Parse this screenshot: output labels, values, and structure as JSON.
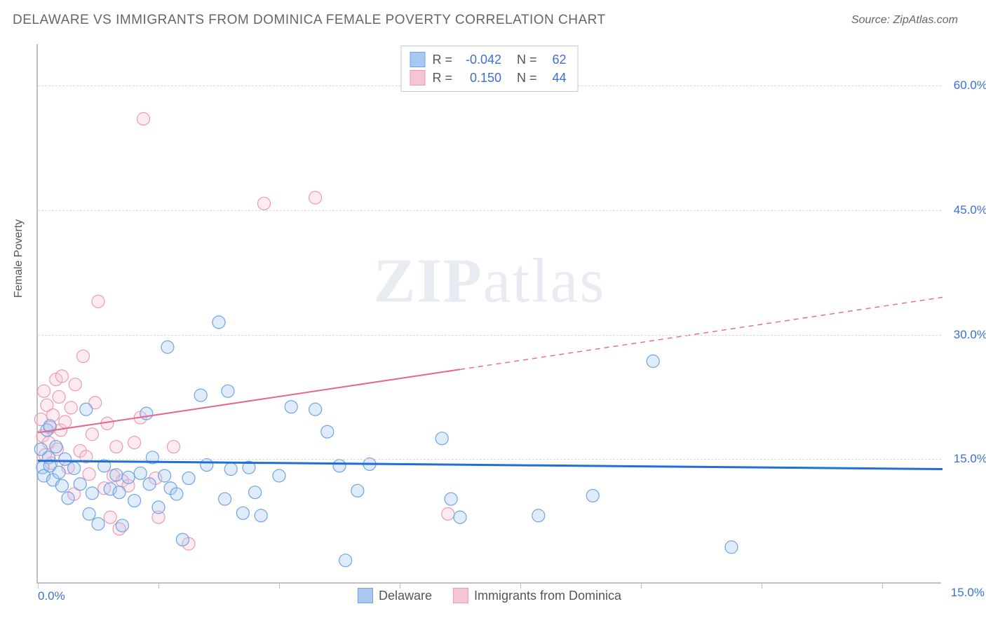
{
  "header": {
    "title": "DELAWARE VS IMMIGRANTS FROM DOMINICA FEMALE POVERTY CORRELATION CHART",
    "source": "Source: ZipAtlas.com"
  },
  "chart": {
    "type": "scatter",
    "y_label": "Female Poverty",
    "watermark": "ZIPatlas",
    "background_color": "#ffffff",
    "grid_color": "#d8d8d8",
    "axis_color": "#c0c0c0",
    "tick_label_color": "#3b6fd6",
    "xlim": [
      0,
      15
    ],
    "ylim": [
      0,
      65
    ],
    "x_ticks": [
      0,
      2,
      4,
      6,
      8,
      10,
      12,
      14
    ],
    "y_ticks": [
      15,
      30,
      45,
      60
    ],
    "x_tick_labels": {
      "0": "0.0%",
      "15": "15.0%"
    },
    "y_tick_labels": [
      "15.0%",
      "30.0%",
      "45.0%",
      "60.0%"
    ],
    "point_radius": 9,
    "point_fill_opacity": 0.35,
    "point_stroke_width": 1.2,
    "series": [
      {
        "name": "Delaware",
        "color_fill": "#a9c8f0",
        "color_stroke": "#6da3e8",
        "R": "-0.042",
        "N": "62",
        "trend": {
          "y_at_x0": 14.8,
          "y_at_x15": 13.8,
          "solid_until_x": 15,
          "line_color": "#1f6fd6",
          "line_width": 3
        },
        "points": [
          [
            0.05,
            16.2
          ],
          [
            0.08,
            14.0
          ],
          [
            0.1,
            13.0
          ],
          [
            0.15,
            18.5
          ],
          [
            0.18,
            15.2
          ],
          [
            0.2,
            19.0
          ],
          [
            0.2,
            14.2
          ],
          [
            0.25,
            12.5
          ],
          [
            0.3,
            16.5
          ],
          [
            0.35,
            13.4
          ],
          [
            0.4,
            11.8
          ],
          [
            0.45,
            15.0
          ],
          [
            0.5,
            10.3
          ],
          [
            0.6,
            13.9
          ],
          [
            0.7,
            12.0
          ],
          [
            0.8,
            21.0
          ],
          [
            0.85,
            8.4
          ],
          [
            0.9,
            10.9
          ],
          [
            1.0,
            7.2
          ],
          [
            1.1,
            14.2
          ],
          [
            1.2,
            11.4
          ],
          [
            1.3,
            13.1
          ],
          [
            1.35,
            11.0
          ],
          [
            1.4,
            7.0
          ],
          [
            1.5,
            12.8
          ],
          [
            1.6,
            10.0
          ],
          [
            1.7,
            13.3
          ],
          [
            1.8,
            20.5
          ],
          [
            1.85,
            12.0
          ],
          [
            1.9,
            15.2
          ],
          [
            2.0,
            9.2
          ],
          [
            2.1,
            13.0
          ],
          [
            2.15,
            28.5
          ],
          [
            2.2,
            11.5
          ],
          [
            2.3,
            10.8
          ],
          [
            2.4,
            5.3
          ],
          [
            2.5,
            12.7
          ],
          [
            2.7,
            22.7
          ],
          [
            2.8,
            14.3
          ],
          [
            3.0,
            31.5
          ],
          [
            3.1,
            10.2
          ],
          [
            3.15,
            23.2
          ],
          [
            3.2,
            13.8
          ],
          [
            3.4,
            8.5
          ],
          [
            3.5,
            14.0
          ],
          [
            3.6,
            11.0
          ],
          [
            3.7,
            8.2
          ],
          [
            4.0,
            13.0
          ],
          [
            4.2,
            21.3
          ],
          [
            4.6,
            21.0
          ],
          [
            4.8,
            18.3
          ],
          [
            5.0,
            14.2
          ],
          [
            5.1,
            2.8
          ],
          [
            5.3,
            11.2
          ],
          [
            5.5,
            14.4
          ],
          [
            6.7,
            17.5
          ],
          [
            6.85,
            10.2
          ],
          [
            7.0,
            8.0
          ],
          [
            8.3,
            8.2
          ],
          [
            9.2,
            10.6
          ],
          [
            10.2,
            26.8
          ],
          [
            11.5,
            4.4
          ]
        ]
      },
      {
        "name": "Immigrants from Dominica",
        "color_fill": "#f6c5d3",
        "color_stroke": "#ef99b2",
        "R": "0.150",
        "N": "44",
        "trend": {
          "y_at_x0": 18.2,
          "y_at_x15": 34.5,
          "solid_until_x": 7.0,
          "line_color": "#e56690",
          "line_width": 2
        },
        "points": [
          [
            0.05,
            19.8
          ],
          [
            0.08,
            17.8
          ],
          [
            0.1,
            23.2
          ],
          [
            0.12,
            15.5
          ],
          [
            0.15,
            21.5
          ],
          [
            0.18,
            17.0
          ],
          [
            0.2,
            18.8
          ],
          [
            0.22,
            14.5
          ],
          [
            0.25,
            20.3
          ],
          [
            0.3,
            24.6
          ],
          [
            0.32,
            16.2
          ],
          [
            0.35,
            22.5
          ],
          [
            0.38,
            18.5
          ],
          [
            0.4,
            25.0
          ],
          [
            0.45,
            19.5
          ],
          [
            0.5,
            14.0
          ],
          [
            0.55,
            21.2
          ],
          [
            0.6,
            10.8
          ],
          [
            0.62,
            24.0
          ],
          [
            0.7,
            16.0
          ],
          [
            0.75,
            27.4
          ],
          [
            0.8,
            15.3
          ],
          [
            0.85,
            13.2
          ],
          [
            0.9,
            18.0
          ],
          [
            0.95,
            21.8
          ],
          [
            1.0,
            34.0
          ],
          [
            1.1,
            11.5
          ],
          [
            1.15,
            19.3
          ],
          [
            1.2,
            8.0
          ],
          [
            1.25,
            13.0
          ],
          [
            1.3,
            16.5
          ],
          [
            1.35,
            6.6
          ],
          [
            1.4,
            12.4
          ],
          [
            1.5,
            11.8
          ],
          [
            1.6,
            17.0
          ],
          [
            1.7,
            20.0
          ],
          [
            1.75,
            56.0
          ],
          [
            1.95,
            12.7
          ],
          [
            2.0,
            8.0
          ],
          [
            2.25,
            16.5
          ],
          [
            2.5,
            4.8
          ],
          [
            3.75,
            45.8
          ],
          [
            4.6,
            46.5
          ],
          [
            6.8,
            8.4
          ]
        ]
      }
    ]
  }
}
